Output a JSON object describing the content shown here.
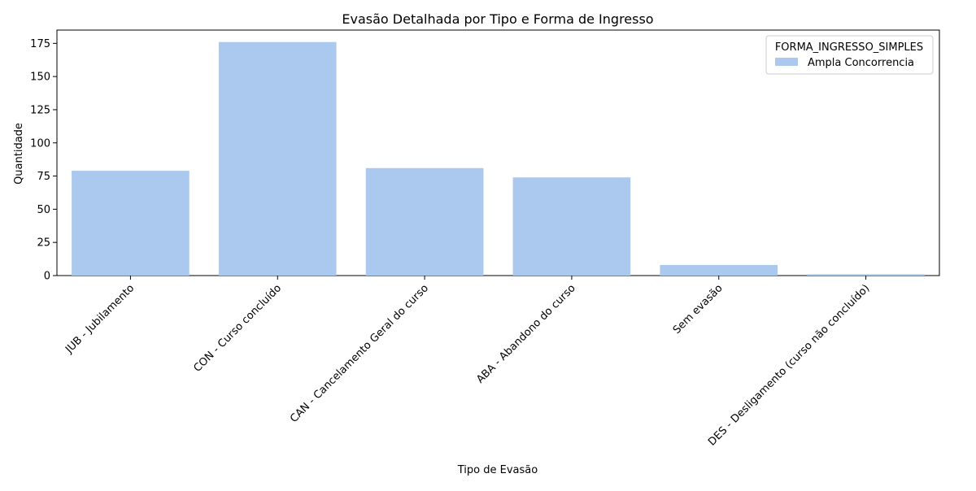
{
  "chart_data": {
    "type": "bar",
    "title": "Evasão Detalhada por Tipo e Forma de Ingresso",
    "xlabel": "Tipo de Evasão",
    "ylabel": "Quantidade",
    "categories": [
      "JUB - Jubilamento",
      "CON - Curso concluído",
      "CAN - Cancelamento Geral do curso",
      "ABA - Abandono do curso",
      "Sem evasão",
      "DES - Desligamento (curso não concluído)"
    ],
    "series": [
      {
        "name": "Ampla Concorrencia",
        "values": [
          79,
          176,
          81,
          74,
          8,
          1
        ],
        "color": "#abc9ee"
      }
    ],
    "ylim": [
      0,
      185
    ],
    "yticks": [
      0,
      25,
      50,
      75,
      100,
      125,
      150,
      175
    ],
    "ytick_labels": [
      "0",
      "25",
      "50",
      "75",
      "100",
      "125",
      "150",
      "175"
    ],
    "grid": false,
    "legend": {
      "title": "FORMA_INGRESSO_SIMPLES",
      "placement": "top-right"
    }
  }
}
